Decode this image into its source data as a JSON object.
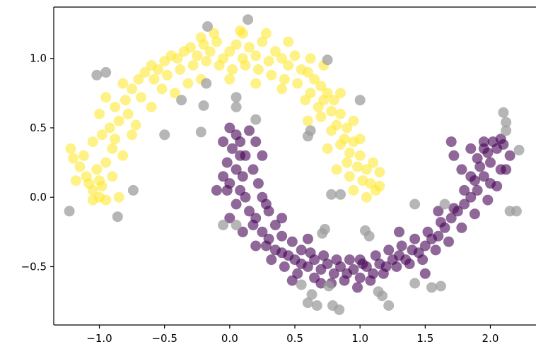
{
  "chart_data": {
    "type": "scatter",
    "title": "",
    "xlabel": "",
    "ylabel": "",
    "xlim": [
      -1.35,
      2.35
    ],
    "ylim": [
      -0.92,
      1.37
    ],
    "xticks": [
      -1.0,
      -0.5,
      0.0,
      0.5,
      1.0,
      1.5,
      2.0
    ],
    "xtick_labels": [
      "−1.0",
      "−0.5",
      "0.0",
      "0.5",
      "1.0",
      "1.5",
      "2.0"
    ],
    "yticks": [
      -0.5,
      0.0,
      0.5,
      1.0
    ],
    "ytick_labels": [
      "−0.5",
      "0.0",
      "0.5",
      "1.0"
    ],
    "grid": false,
    "legend": "none",
    "series": [
      {
        "cluster": "upper-moon",
        "color": "#fde725",
        "opacity": 0.55,
        "points": [
          [
            -1.0,
            0.0
          ],
          [
            -1.05,
            0.05
          ],
          [
            -0.98,
            0.08
          ],
          [
            -1.1,
            0.15
          ],
          [
            -1.02,
            0.2
          ],
          [
            -0.95,
            0.25
          ],
          [
            -1.12,
            0.3
          ],
          [
            -0.9,
            0.35
          ],
          [
            -1.05,
            0.4
          ],
          [
            -0.98,
            0.45
          ],
          [
            -0.92,
            0.5
          ],
          [
            -0.85,
            0.55
          ],
          [
            -1.0,
            0.6
          ],
          [
            -0.88,
            0.65
          ],
          [
            -0.8,
            0.7
          ],
          [
            -0.95,
            0.72
          ],
          [
            -0.75,
            0.78
          ],
          [
            -0.82,
            0.82
          ],
          [
            -0.7,
            0.85
          ],
          [
            -0.65,
            0.9
          ],
          [
            -0.6,
            0.95
          ],
          [
            -0.55,
            0.92
          ],
          [
            -0.5,
            0.98
          ],
          [
            -0.45,
            1.02
          ],
          [
            -0.4,
            1.0
          ],
          [
            -0.35,
            1.05
          ],
          [
            -0.3,
            1.08
          ],
          [
            -0.25,
            1.02
          ],
          [
            -0.2,
            1.1
          ],
          [
            -0.15,
            1.05
          ],
          [
            -0.1,
            1.12
          ],
          [
            -0.05,
            1.0
          ],
          [
            0.0,
            1.05
          ],
          [
            0.05,
            1.1
          ],
          [
            0.1,
            1.0
          ],
          [
            0.15,
            1.08
          ],
          [
            0.2,
            1.02
          ],
          [
            0.25,
            1.12
          ],
          [
            0.3,
            0.98
          ],
          [
            0.35,
            1.05
          ],
          [
            0.4,
            1.0
          ],
          [
            0.45,
            0.95
          ],
          [
            0.5,
            1.02
          ],
          [
            0.55,
            0.92
          ],
          [
            0.6,
            0.9
          ],
          [
            0.65,
            0.85
          ],
          [
            0.7,
            0.8
          ],
          [
            0.75,
            0.75
          ],
          [
            0.8,
            0.7
          ],
          [
            0.78,
            0.62
          ],
          [
            0.85,
            0.6
          ],
          [
            0.82,
            0.52
          ],
          [
            0.9,
            0.5
          ],
          [
            0.88,
            0.42
          ],
          [
            0.95,
            0.4
          ],
          [
            0.92,
            0.32
          ],
          [
            1.0,
            0.3
          ],
          [
            0.98,
            0.22
          ],
          [
            1.05,
            0.2
          ],
          [
            1.02,
            0.12
          ],
          [
            1.08,
            0.1
          ],
          [
            0.95,
            0.05
          ],
          [
            1.05,
            0.0
          ],
          [
            -1.15,
            0.22
          ],
          [
            -1.2,
            0.28
          ],
          [
            -1.08,
            0.1
          ],
          [
            -0.88,
            0.42
          ],
          [
            -0.78,
            0.6
          ],
          [
            -0.68,
            0.72
          ],
          [
            -0.58,
            0.85
          ],
          [
            -0.48,
            0.88
          ],
          [
            -0.38,
            0.92
          ],
          [
            -0.28,
            0.95
          ],
          [
            -0.18,
            0.98
          ],
          [
            -0.08,
            0.95
          ],
          [
            0.02,
            0.92
          ],
          [
            0.12,
            0.95
          ],
          [
            0.22,
            0.92
          ],
          [
            0.32,
            0.88
          ],
          [
            0.42,
            0.85
          ],
          [
            0.52,
            0.82
          ],
          [
            0.62,
            0.75
          ],
          [
            0.72,
            0.7
          ],
          [
            0.7,
            0.58
          ],
          [
            0.78,
            0.48
          ],
          [
            0.85,
            0.38
          ],
          [
            0.9,
            0.25
          ],
          [
            0.92,
            0.15
          ],
          [
            1.1,
            0.25
          ],
          [
            1.15,
            0.18
          ],
          [
            1.12,
            0.05
          ],
          [
            -0.95,
            -0.02
          ],
          [
            -1.0,
            0.12
          ],
          [
            -0.82,
            0.3
          ],
          [
            -0.75,
            0.45
          ],
          [
            -0.6,
            0.65
          ],
          [
            -0.42,
            0.75
          ],
          [
            -0.22,
            0.85
          ],
          [
            0.0,
            0.85
          ],
          [
            0.2,
            0.82
          ],
          [
            0.4,
            0.78
          ],
          [
            0.58,
            0.7
          ],
          [
            0.68,
            0.65
          ],
          [
            0.6,
            0.55
          ],
          [
            0.75,
            0.35
          ],
          [
            0.82,
            0.2
          ],
          [
            -1.22,
            0.35
          ],
          [
            -1.18,
            0.12
          ],
          [
            -0.9,
            0.15
          ],
          [
            -0.72,
            0.52
          ],
          [
            -0.52,
            0.78
          ],
          [
            -0.32,
            0.82
          ],
          [
            -0.12,
            1.18
          ],
          [
            0.08,
            1.2
          ],
          [
            0.28,
            1.18
          ],
          [
            0.45,
            1.12
          ],
          [
            0.62,
            1.0
          ],
          [
            0.72,
            0.95
          ],
          [
            0.85,
            0.75
          ],
          [
            0.95,
            0.55
          ],
          [
            1.0,
            0.42
          ],
          [
            1.15,
            0.08
          ],
          [
            -0.85,
            0.0
          ],
          [
            -1.05,
            -0.02
          ],
          [
            0.1,
            1.18
          ],
          [
            -0.22,
            1.15
          ]
        ]
      },
      {
        "cluster": "lower-moon",
        "color": "#440154",
        "opacity": 0.6,
        "points": [
          [
            0.0,
            0.5
          ],
          [
            0.05,
            0.45
          ],
          [
            -0.05,
            0.4
          ],
          [
            0.02,
            0.35
          ],
          [
            0.08,
            0.3
          ],
          [
            -0.02,
            0.25
          ],
          [
            0.05,
            0.2
          ],
          [
            0.1,
            0.15
          ],
          [
            0.0,
            0.1
          ],
          [
            0.08,
            0.05
          ],
          [
            0.12,
            0.0
          ],
          [
            0.05,
            -0.05
          ],
          [
            0.15,
            -0.1
          ],
          [
            0.2,
            -0.15
          ],
          [
            0.18,
            -0.2
          ],
          [
            0.25,
            -0.25
          ],
          [
            0.3,
            -0.3
          ],
          [
            0.28,
            -0.35
          ],
          [
            0.35,
            -0.38
          ],
          [
            0.4,
            -0.4
          ],
          [
            0.45,
            -0.42
          ],
          [
            0.5,
            -0.45
          ],
          [
            0.55,
            -0.48
          ],
          [
            0.6,
            -0.5
          ],
          [
            0.65,
            -0.45
          ],
          [
            0.7,
            -0.52
          ],
          [
            0.75,
            -0.48
          ],
          [
            0.8,
            -0.55
          ],
          [
            0.85,
            -0.5
          ],
          [
            0.9,
            -0.55
          ],
          [
            0.95,
            -0.52
          ],
          [
            1.0,
            -0.58
          ],
          [
            1.05,
            -0.5
          ],
          [
            1.1,
            -0.55
          ],
          [
            1.15,
            -0.48
          ],
          [
            1.2,
            -0.5
          ],
          [
            1.25,
            -0.45
          ],
          [
            1.3,
            -0.42
          ],
          [
            1.35,
            -0.45
          ],
          [
            1.4,
            -0.38
          ],
          [
            1.45,
            -0.4
          ],
          [
            1.5,
            -0.35
          ],
          [
            1.55,
            -0.3
          ],
          [
            1.6,
            -0.28
          ],
          [
            1.65,
            -0.22
          ],
          [
            1.7,
            -0.15
          ],
          [
            1.75,
            -0.1
          ],
          [
            1.8,
            -0.05
          ],
          [
            1.85,
            0.0
          ],
          [
            1.9,
            0.05
          ],
          [
            1.88,
            0.12
          ],
          [
            1.95,
            0.15
          ],
          [
            1.92,
            0.22
          ],
          [
            2.0,
            0.25
          ],
          [
            1.98,
            0.32
          ],
          [
            2.05,
            0.35
          ],
          [
            2.02,
            0.4
          ],
          [
            2.08,
            0.42
          ],
          [
            1.95,
            0.4
          ],
          [
            2.1,
            0.38
          ],
          [
            0.15,
            0.48
          ],
          [
            0.2,
            0.4
          ],
          [
            0.12,
            0.3
          ],
          [
            0.18,
            0.2
          ],
          [
            0.22,
            0.1
          ],
          [
            0.25,
            0.0
          ],
          [
            0.3,
            -0.1
          ],
          [
            0.35,
            -0.2
          ],
          [
            0.4,
            -0.28
          ],
          [
            0.48,
            -0.32
          ],
          [
            0.55,
            -0.38
          ],
          [
            0.62,
            -0.4
          ],
          [
            0.72,
            -0.42
          ],
          [
            0.82,
            -0.45
          ],
          [
            0.92,
            -0.45
          ],
          [
            1.02,
            -0.48
          ],
          [
            1.12,
            -0.42
          ],
          [
            1.22,
            -0.38
          ],
          [
            1.32,
            -0.35
          ],
          [
            1.42,
            -0.3
          ],
          [
            1.52,
            -0.25
          ],
          [
            1.62,
            -0.18
          ],
          [
            1.72,
            -0.08
          ],
          [
            1.8,
            0.05
          ],
          [
            1.85,
            0.15
          ],
          [
            1.9,
            0.28
          ],
          [
            1.95,
            0.35
          ],
          [
            2.0,
            0.1
          ],
          [
            1.78,
            0.2
          ],
          [
            1.72,
            0.3
          ],
          [
            -0.05,
            0.15
          ],
          [
            -0.1,
            0.05
          ],
          [
            0.0,
            -0.15
          ],
          [
            0.1,
            -0.25
          ],
          [
            0.2,
            -0.35
          ],
          [
            0.32,
            -0.45
          ],
          [
            0.42,
            -0.5
          ],
          [
            0.52,
            -0.55
          ],
          [
            0.65,
            -0.58
          ],
          [
            0.78,
            -0.62
          ],
          [
            0.88,
            -0.6
          ],
          [
            0.98,
            -0.65
          ],
          [
            1.08,
            -0.6
          ],
          [
            1.18,
            -0.55
          ],
          [
            1.28,
            -0.5
          ],
          [
            1.38,
            -0.48
          ],
          [
            1.48,
            -0.45
          ],
          [
            1.58,
            -0.38
          ],
          [
            1.68,
            -0.32
          ],
          [
            1.78,
            -0.22
          ],
          [
            1.88,
            -0.12
          ],
          [
            1.98,
            -0.02
          ],
          [
            2.05,
            0.08
          ],
          [
            2.12,
            0.2
          ],
          [
            2.15,
            0.3
          ],
          [
            2.08,
            0.2
          ],
          [
            -0.02,
            0.05
          ],
          [
            0.28,
            -0.05
          ],
          [
            0.6,
            -0.3
          ],
          [
            1.3,
            -0.25
          ],
          [
            1.6,
            -0.1
          ],
          [
            1.85,
            0.35
          ],
          [
            0.48,
            -0.6
          ],
          [
            1.0,
            -0.45
          ],
          [
            0.7,
            -0.62
          ],
          [
            0.08,
            0.4
          ],
          [
            0.25,
            0.3
          ],
          [
            1.7,
            0.4
          ],
          [
            0.4,
            -0.15
          ],
          [
            1.5,
            -0.55
          ]
        ]
      },
      {
        "cluster": "noise",
        "color": "#9e9e9e",
        "opacity": 0.75,
        "points": [
          [
            -1.23,
            -0.1
          ],
          [
            -0.86,
            -0.14
          ],
          [
            -0.74,
            0.05
          ],
          [
            -0.5,
            0.45
          ],
          [
            -0.37,
            0.7
          ],
          [
            -0.22,
            0.47
          ],
          [
            -0.2,
            0.66
          ],
          [
            -0.18,
            0.82
          ],
          [
            -1.02,
            0.88
          ],
          [
            -0.95,
            0.9
          ],
          [
            -0.17,
            1.23
          ],
          [
            0.05,
            0.65
          ],
          [
            0.05,
            0.72
          ],
          [
            0.14,
            1.28
          ],
          [
            0.2,
            0.56
          ],
          [
            0.6,
            0.44
          ],
          [
            0.62,
            0.48
          ],
          [
            0.75,
            0.99
          ],
          [
            1.0,
            0.7
          ],
          [
            0.78,
            0.02
          ],
          [
            0.85,
            0.02
          ],
          [
            0.73,
            -0.23
          ],
          [
            0.55,
            -0.63
          ],
          [
            0.63,
            -0.7
          ],
          [
            0.6,
            -0.76
          ],
          [
            0.67,
            -0.78
          ],
          [
            0.79,
            -0.78
          ],
          [
            0.84,
            -0.81
          ],
          [
            0.76,
            -0.64
          ],
          [
            1.14,
            -0.68
          ],
          [
            1.17,
            -0.71
          ],
          [
            1.22,
            -0.78
          ],
          [
            1.42,
            -0.62
          ],
          [
            1.55,
            -0.65
          ],
          [
            1.62,
            -0.64
          ],
          [
            2.1,
            0.61
          ],
          [
            2.12,
            0.54
          ],
          [
            2.12,
            0.48
          ],
          [
            2.22,
            0.34
          ],
          [
            2.15,
            -0.1
          ],
          [
            2.2,
            -0.1
          ],
          [
            1.65,
            -0.05
          ],
          [
            1.42,
            -0.05
          ],
          [
            -0.05,
            -0.2
          ],
          [
            0.05,
            -0.2
          ],
          [
            1.04,
            -0.24
          ],
          [
            1.07,
            -0.28
          ],
          [
            0.71,
            -0.26
          ]
        ]
      }
    ]
  }
}
